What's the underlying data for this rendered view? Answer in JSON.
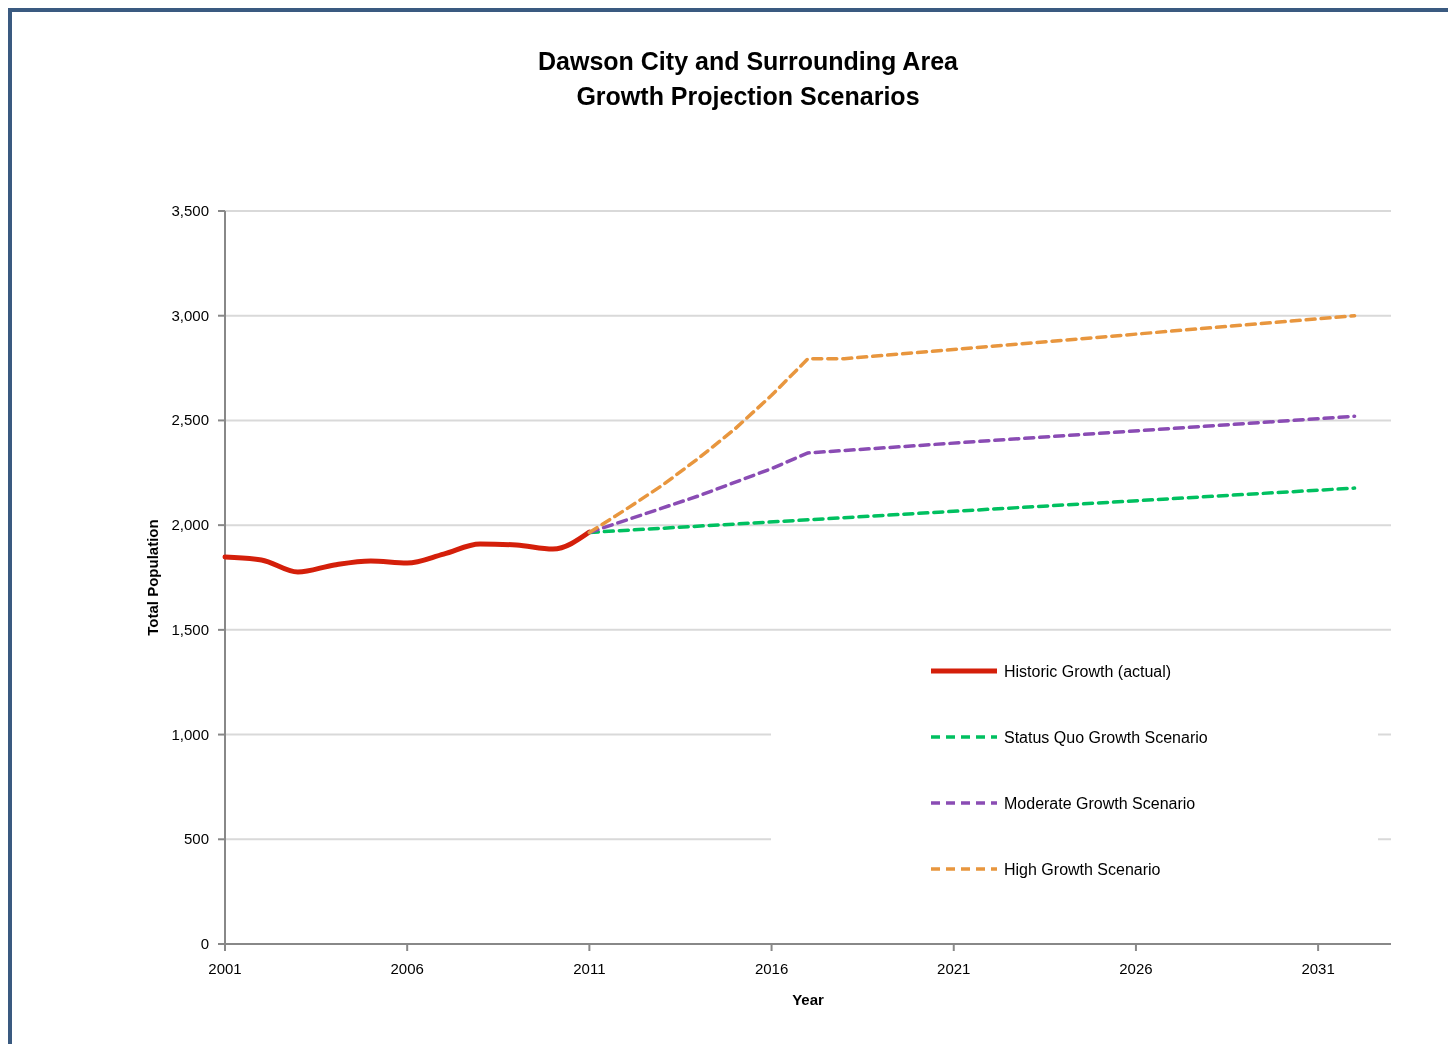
{
  "chart_data": {
    "type": "line",
    "title": "Dawson City and Surrounding Area\nGrowth Projection Scenarios",
    "xlabel": "Year",
    "ylabel": "Total Population",
    "xlim": [
      2001,
      2033
    ],
    "xticks": [
      2001,
      2006,
      2011,
      2016,
      2021,
      2026,
      2031
    ],
    "ylim": [
      0,
      3500
    ],
    "yticks": [
      {
        "value": 0,
        "label": "0"
      },
      {
        "value": 500,
        "label": "500"
      },
      {
        "value": 1000,
        "label": "1,000"
      },
      {
        "value": 1500,
        "label": "1,500"
      },
      {
        "value": 2000,
        "label": "2,000"
      },
      {
        "value": 2500,
        "label": "2,500"
      },
      {
        "value": 3000,
        "label": "3,000"
      },
      {
        "value": 3500,
        "label": "3,500"
      }
    ],
    "grid": "y",
    "legend": "bottom right",
    "series": [
      {
        "name": "Historic Growth (actual)",
        "color": "#d41f0a",
        "line_style": "solid",
        "x": [
          2001,
          2002,
          2003,
          2004,
          2005,
          2006,
          2007,
          2008,
          2009,
          2010,
          2011
        ],
        "values": [
          1848,
          1834,
          1776,
          1810,
          1829,
          1819,
          1862,
          1910,
          1905,
          1886,
          1967
        ]
      },
      {
        "name": "Status Quo Growth Scenario",
        "color": "#00c060",
        "line_style": "dashed",
        "x": [
          2011,
          2032
        ],
        "values": [
          1965,
          2177
        ]
      },
      {
        "name": "Moderate Growth Scenario",
        "color": "#8a4cb4",
        "line_style": "dashed",
        "x": [
          2011,
          2014,
          2016,
          2017,
          2032
        ],
        "values": [
          1965,
          2140,
          2270,
          2345,
          2520
        ]
      },
      {
        "name": "High Growth Scenario",
        "color": "#e8963e",
        "line_style": "dashed",
        "x": [
          2011,
          2012,
          2013,
          2014,
          2015,
          2016,
          2017,
          2018,
          2032
        ],
        "values": [
          1965,
          2075,
          2190,
          2320,
          2460,
          2620,
          2795,
          2795,
          3000
        ]
      }
    ]
  }
}
